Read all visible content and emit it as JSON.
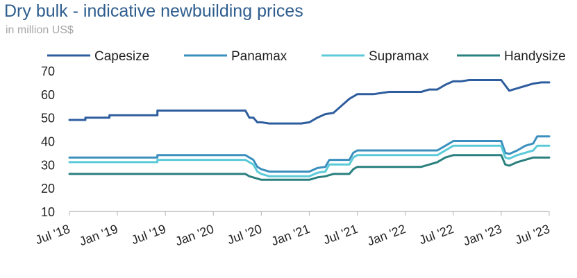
{
  "title": "Dry bulk - indicative newbuilding prices",
  "subtitle": "in million US$",
  "chart_data": {
    "type": "line",
    "title": "Dry bulk - indicative newbuilding prices",
    "subtitle": "in million US$",
    "xlabel": "",
    "ylabel": "",
    "x_tick_labels": [
      "Jul '18",
      "Jan '19",
      "Jul '19",
      "Jan '20",
      "Jul '20",
      "Jan '21",
      "Jul '21",
      "Jan '22",
      "Jul '22",
      "Jan '23",
      "Jul '23"
    ],
    "y_ticks": [
      10,
      20,
      30,
      40,
      50,
      60,
      70
    ],
    "ylim": [
      10,
      70
    ],
    "xlim": [
      "2018-07",
      "2023-07"
    ],
    "grid": false,
    "legend_position": "top",
    "series": [
      {
        "name": "Capesize",
        "color": "#2e5d9e",
        "points": [
          [
            "2018-07",
            49
          ],
          [
            "2018-09",
            49
          ],
          [
            "2018-09",
            50
          ],
          [
            "2018-12",
            50
          ],
          [
            "2018-12",
            51
          ],
          [
            "2019-06",
            51
          ],
          [
            "2019-06",
            53
          ],
          [
            "2020-02",
            53
          ],
          [
            "2020-05",
            53
          ],
          [
            "2020-05.5",
            50
          ],
          [
            "2020-06",
            50
          ],
          [
            "2020-06.5",
            48
          ],
          [
            "2020-07",
            48
          ],
          [
            "2020-08",
            47.5
          ],
          [
            "2020-10",
            47.5
          ],
          [
            "2020-12",
            47.5
          ],
          [
            "2021-01",
            48
          ],
          [
            "2021-02",
            50
          ],
          [
            "2021-03",
            51.5
          ],
          [
            "2021-04",
            52
          ],
          [
            "2021-05",
            55
          ],
          [
            "2021-06",
            58
          ],
          [
            "2021-07",
            60
          ],
          [
            "2021-09",
            60
          ],
          [
            "2021-11",
            61
          ],
          [
            "2022-03",
            61
          ],
          [
            "2022-04",
            62
          ],
          [
            "2022-05",
            62
          ],
          [
            "2022-06",
            64
          ],
          [
            "2022-07",
            65.5
          ],
          [
            "2022-08",
            65.5
          ],
          [
            "2022-09",
            66
          ],
          [
            "2022-12",
            66
          ],
          [
            "2023-01",
            66
          ],
          [
            "2023-02",
            61.5
          ],
          [
            "2023-03",
            62.5
          ],
          [
            "2023-04",
            63.5
          ],
          [
            "2023-05",
            64.5
          ],
          [
            "2023-06",
            65
          ],
          [
            "2023-07",
            65
          ]
        ]
      },
      {
        "name": "Panamax",
        "color": "#3a8fbe",
        "points": [
          [
            "2018-07",
            33
          ],
          [
            "2019-06",
            33
          ],
          [
            "2019-06",
            34
          ],
          [
            "2020-05",
            34
          ],
          [
            "2020-05.5",
            33
          ],
          [
            "2020-06",
            32
          ],
          [
            "2020-06.5",
            29
          ],
          [
            "2020-07",
            28
          ],
          [
            "2020-08",
            27
          ],
          [
            "2021-01",
            27
          ],
          [
            "2021-02",
            28.5
          ],
          [
            "2021-03",
            29
          ],
          [
            "2021-03.5",
            32
          ],
          [
            "2021-06",
            32
          ],
          [
            "2021-06.5",
            35
          ],
          [
            "2021-07",
            36
          ],
          [
            "2022-05",
            36
          ],
          [
            "2022-06",
            38
          ],
          [
            "2022-07",
            40
          ],
          [
            "2023-01",
            40
          ],
          [
            "2023-01.5",
            35
          ],
          [
            "2023-02",
            34.5
          ],
          [
            "2023-03",
            36
          ],
          [
            "2023-04",
            38
          ],
          [
            "2023-05",
            39
          ],
          [
            "2023-05.5",
            42
          ],
          [
            "2023-07",
            42
          ]
        ]
      },
      {
        "name": "Supramax",
        "color": "#5bcad8",
        "points": [
          [
            "2018-07",
            31
          ],
          [
            "2019-06",
            31
          ],
          [
            "2019-06",
            32
          ],
          [
            "2020-05",
            32
          ],
          [
            "2020-05.5",
            31
          ],
          [
            "2020-06",
            30
          ],
          [
            "2020-06.5",
            27
          ],
          [
            "2020-07",
            26
          ],
          [
            "2020-08",
            25
          ],
          [
            "2021-01",
            25
          ],
          [
            "2021-02",
            26.5
          ],
          [
            "2021-03",
            27
          ],
          [
            "2021-03.5",
            30
          ],
          [
            "2021-06",
            30
          ],
          [
            "2021-06.5",
            33
          ],
          [
            "2021-07",
            34
          ],
          [
            "2022-05",
            34
          ],
          [
            "2022-06",
            36
          ],
          [
            "2022-07",
            38
          ],
          [
            "2023-01",
            38
          ],
          [
            "2023-01.5",
            33
          ],
          [
            "2023-02",
            32.5
          ],
          [
            "2023-03",
            34
          ],
          [
            "2023-04",
            35
          ],
          [
            "2023-05",
            36
          ],
          [
            "2023-05.5",
            38
          ],
          [
            "2023-07",
            38
          ]
        ]
      },
      {
        "name": "Handysize",
        "color": "#2a7f7f",
        "points": [
          [
            "2018-07",
            26
          ],
          [
            "2020-05",
            26
          ],
          [
            "2020-05.5",
            25
          ],
          [
            "2020-06",
            24.5
          ],
          [
            "2020-07",
            23.5
          ],
          [
            "2021-01",
            23.5
          ],
          [
            "2021-02",
            24.5
          ],
          [
            "2021-03",
            25
          ],
          [
            "2021-04",
            26
          ],
          [
            "2021-06",
            26
          ],
          [
            "2021-06.5",
            28
          ],
          [
            "2021-07",
            29
          ],
          [
            "2022-03",
            29
          ],
          [
            "2022-04",
            30
          ],
          [
            "2022-05",
            31
          ],
          [
            "2022-06",
            33
          ],
          [
            "2022-07",
            34
          ],
          [
            "2023-01",
            34
          ],
          [
            "2023-01.5",
            30
          ],
          [
            "2023-02",
            29.5
          ],
          [
            "2023-03",
            31
          ],
          [
            "2023-04",
            32
          ],
          [
            "2023-05",
            33
          ],
          [
            "2023-07",
            33
          ]
        ]
      }
    ]
  }
}
